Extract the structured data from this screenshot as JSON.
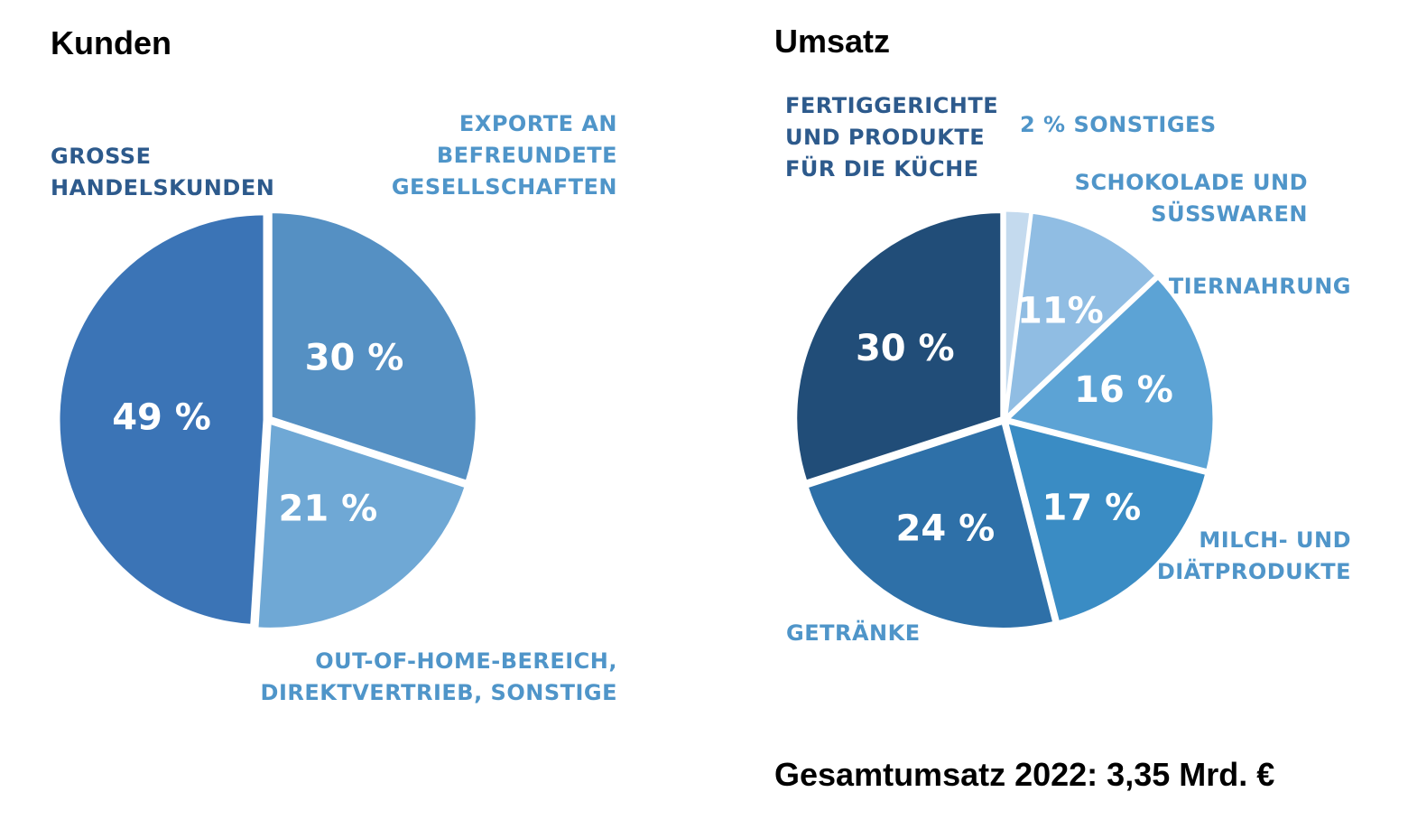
{
  "chart_data": [
    {
      "type": "pie",
      "title": "Kunden",
      "slices": [
        {
          "label": "GROSSE\nHANDELSKUNDEN",
          "value": 49,
          "value_label": "49 %",
          "color": "#3b74b6"
        },
        {
          "label": "EXPORTE AN\nBEFREUNDETE\nGESELLSCHAFTEN",
          "value": 30,
          "value_label": "30 %",
          "color": "#5590c3"
        },
        {
          "label": "OUT-OF-HOME-BEREICH,\nDIREKTVERTRIEB, SONSTIGE",
          "value": 21,
          "value_label": "21 %",
          "color": "#6fa8d5"
        }
      ]
    },
    {
      "type": "pie",
      "title": "Umsatz",
      "slices": [
        {
          "label": "2 % SONSTIGES",
          "value": 2,
          "value_label": "",
          "color": "#c4daee"
        },
        {
          "label": "SCHOKOLADE UND\nSÜSSWAREN",
          "value": 11,
          "value_label": "11%",
          "color": "#90bde3"
        },
        {
          "label": "TIERNAHRUNG",
          "value": 16,
          "value_label": "16 %",
          "color": "#5ca3d5"
        },
        {
          "label": "MILCH- UND\nDIÄTPRODUKTE",
          "value": 17,
          "value_label": "17 %",
          "color": "#3a8cc4"
        },
        {
          "label": "GETRÄNKE",
          "value": 24,
          "value_label": "24 %",
          "color": "#2e70a8"
        },
        {
          "label": "FERTIGGERICHTE\nUND PRODUKTE\nFÜR DIE KÜCHE",
          "value": 30,
          "value_label": "30 %",
          "color": "#214d78"
        }
      ]
    }
  ],
  "footer": {
    "total": "Gesamtumsatz 2022: 3,35 Mrd. €"
  },
  "colors": {
    "label_dark": "#2d5a8c",
    "label_light": "#4f95c9"
  }
}
